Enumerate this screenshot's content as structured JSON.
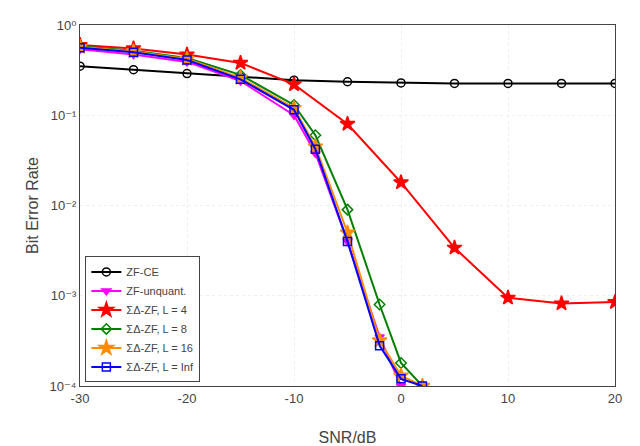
{
  "chart_data": {
    "type": "line",
    "xlabel": "SNR/dB",
    "ylabel": "Bit Error Rate",
    "log": "y",
    "grid": true,
    "legend": "lower left",
    "xlim": [
      -30,
      20
    ],
    "ylim": [
      0.0001,
      1.0
    ],
    "xticks": [
      -30,
      -20,
      -10,
      0,
      10,
      20
    ],
    "yticks": [
      {
        "value": 0.0001,
        "label": "10⁻⁴"
      },
      {
        "value": 0.001,
        "label": "10⁻³"
      },
      {
        "value": 0.01,
        "label": "10⁻²"
      },
      {
        "value": 0.1,
        "label": "10⁻¹"
      },
      {
        "value": 1,
        "label": "10⁰"
      }
    ],
    "series": [
      {
        "name": "ZF-CE",
        "color": "#000000",
        "marker": "circle-open",
        "x": [
          -30,
          -25,
          -20,
          -15,
          -10,
          -5,
          0,
          5,
          10,
          15,
          20
        ],
        "values": [
          0.35,
          0.32,
          0.29,
          0.265,
          0.245,
          0.235,
          0.228,
          0.225,
          0.225,
          0.225,
          0.225
        ]
      },
      {
        "name": "ZF-unquant.",
        "color": "#FF00FF",
        "marker": "triangle-down",
        "x": [
          -30,
          -25,
          -20,
          -15,
          -10,
          -8,
          -5,
          -2,
          0
        ],
        "values": [
          0.54,
          0.47,
          0.39,
          0.24,
          0.1,
          0.038,
          0.004,
          0.00035,
          0.0001
        ]
      },
      {
        "name": "ΣΔ-ZF, L = 4",
        "color": "#FF0000",
        "marker": "star",
        "x": [
          -30,
          -25,
          -20,
          -15,
          -10,
          -5,
          0,
          5,
          10,
          15,
          20
        ],
        "values": [
          0.6,
          0.55,
          0.47,
          0.38,
          0.22,
          0.08,
          0.018,
          0.0034,
          0.00095,
          0.00082,
          0.00085
        ]
      },
      {
        "name": "ΣΔ-ZF, L = 8",
        "color": "#008000",
        "marker": "diamond-open",
        "x": [
          -30,
          -25,
          -20,
          -15,
          -10,
          -8,
          -5,
          -2,
          0,
          2
        ],
        "values": [
          0.58,
          0.52,
          0.43,
          0.28,
          0.13,
          0.06,
          0.009,
          0.0008,
          0.00018,
          0.0001
        ]
      },
      {
        "name": "ΣΔ-ZF, L = 16",
        "color": "#FF8C00",
        "marker": "star",
        "x": [
          -30,
          -25,
          -20,
          -15,
          -10,
          -8,
          -5,
          -2,
          0,
          2
        ],
        "values": [
          0.57,
          0.51,
          0.42,
          0.26,
          0.12,
          0.045,
          0.005,
          0.00032,
          0.00013,
          0.0001
        ]
      },
      {
        "name": "ΣΔ-ZF, L = Inf",
        "color": "#0000FF",
        "marker": "square-open",
        "x": [
          -30,
          -25,
          -20,
          -15,
          -10,
          -8,
          -5,
          -2,
          0,
          2
        ],
        "values": [
          0.56,
          0.5,
          0.41,
          0.25,
          0.115,
          0.042,
          0.004,
          0.00028,
          0.00012,
          0.0001
        ]
      }
    ]
  }
}
